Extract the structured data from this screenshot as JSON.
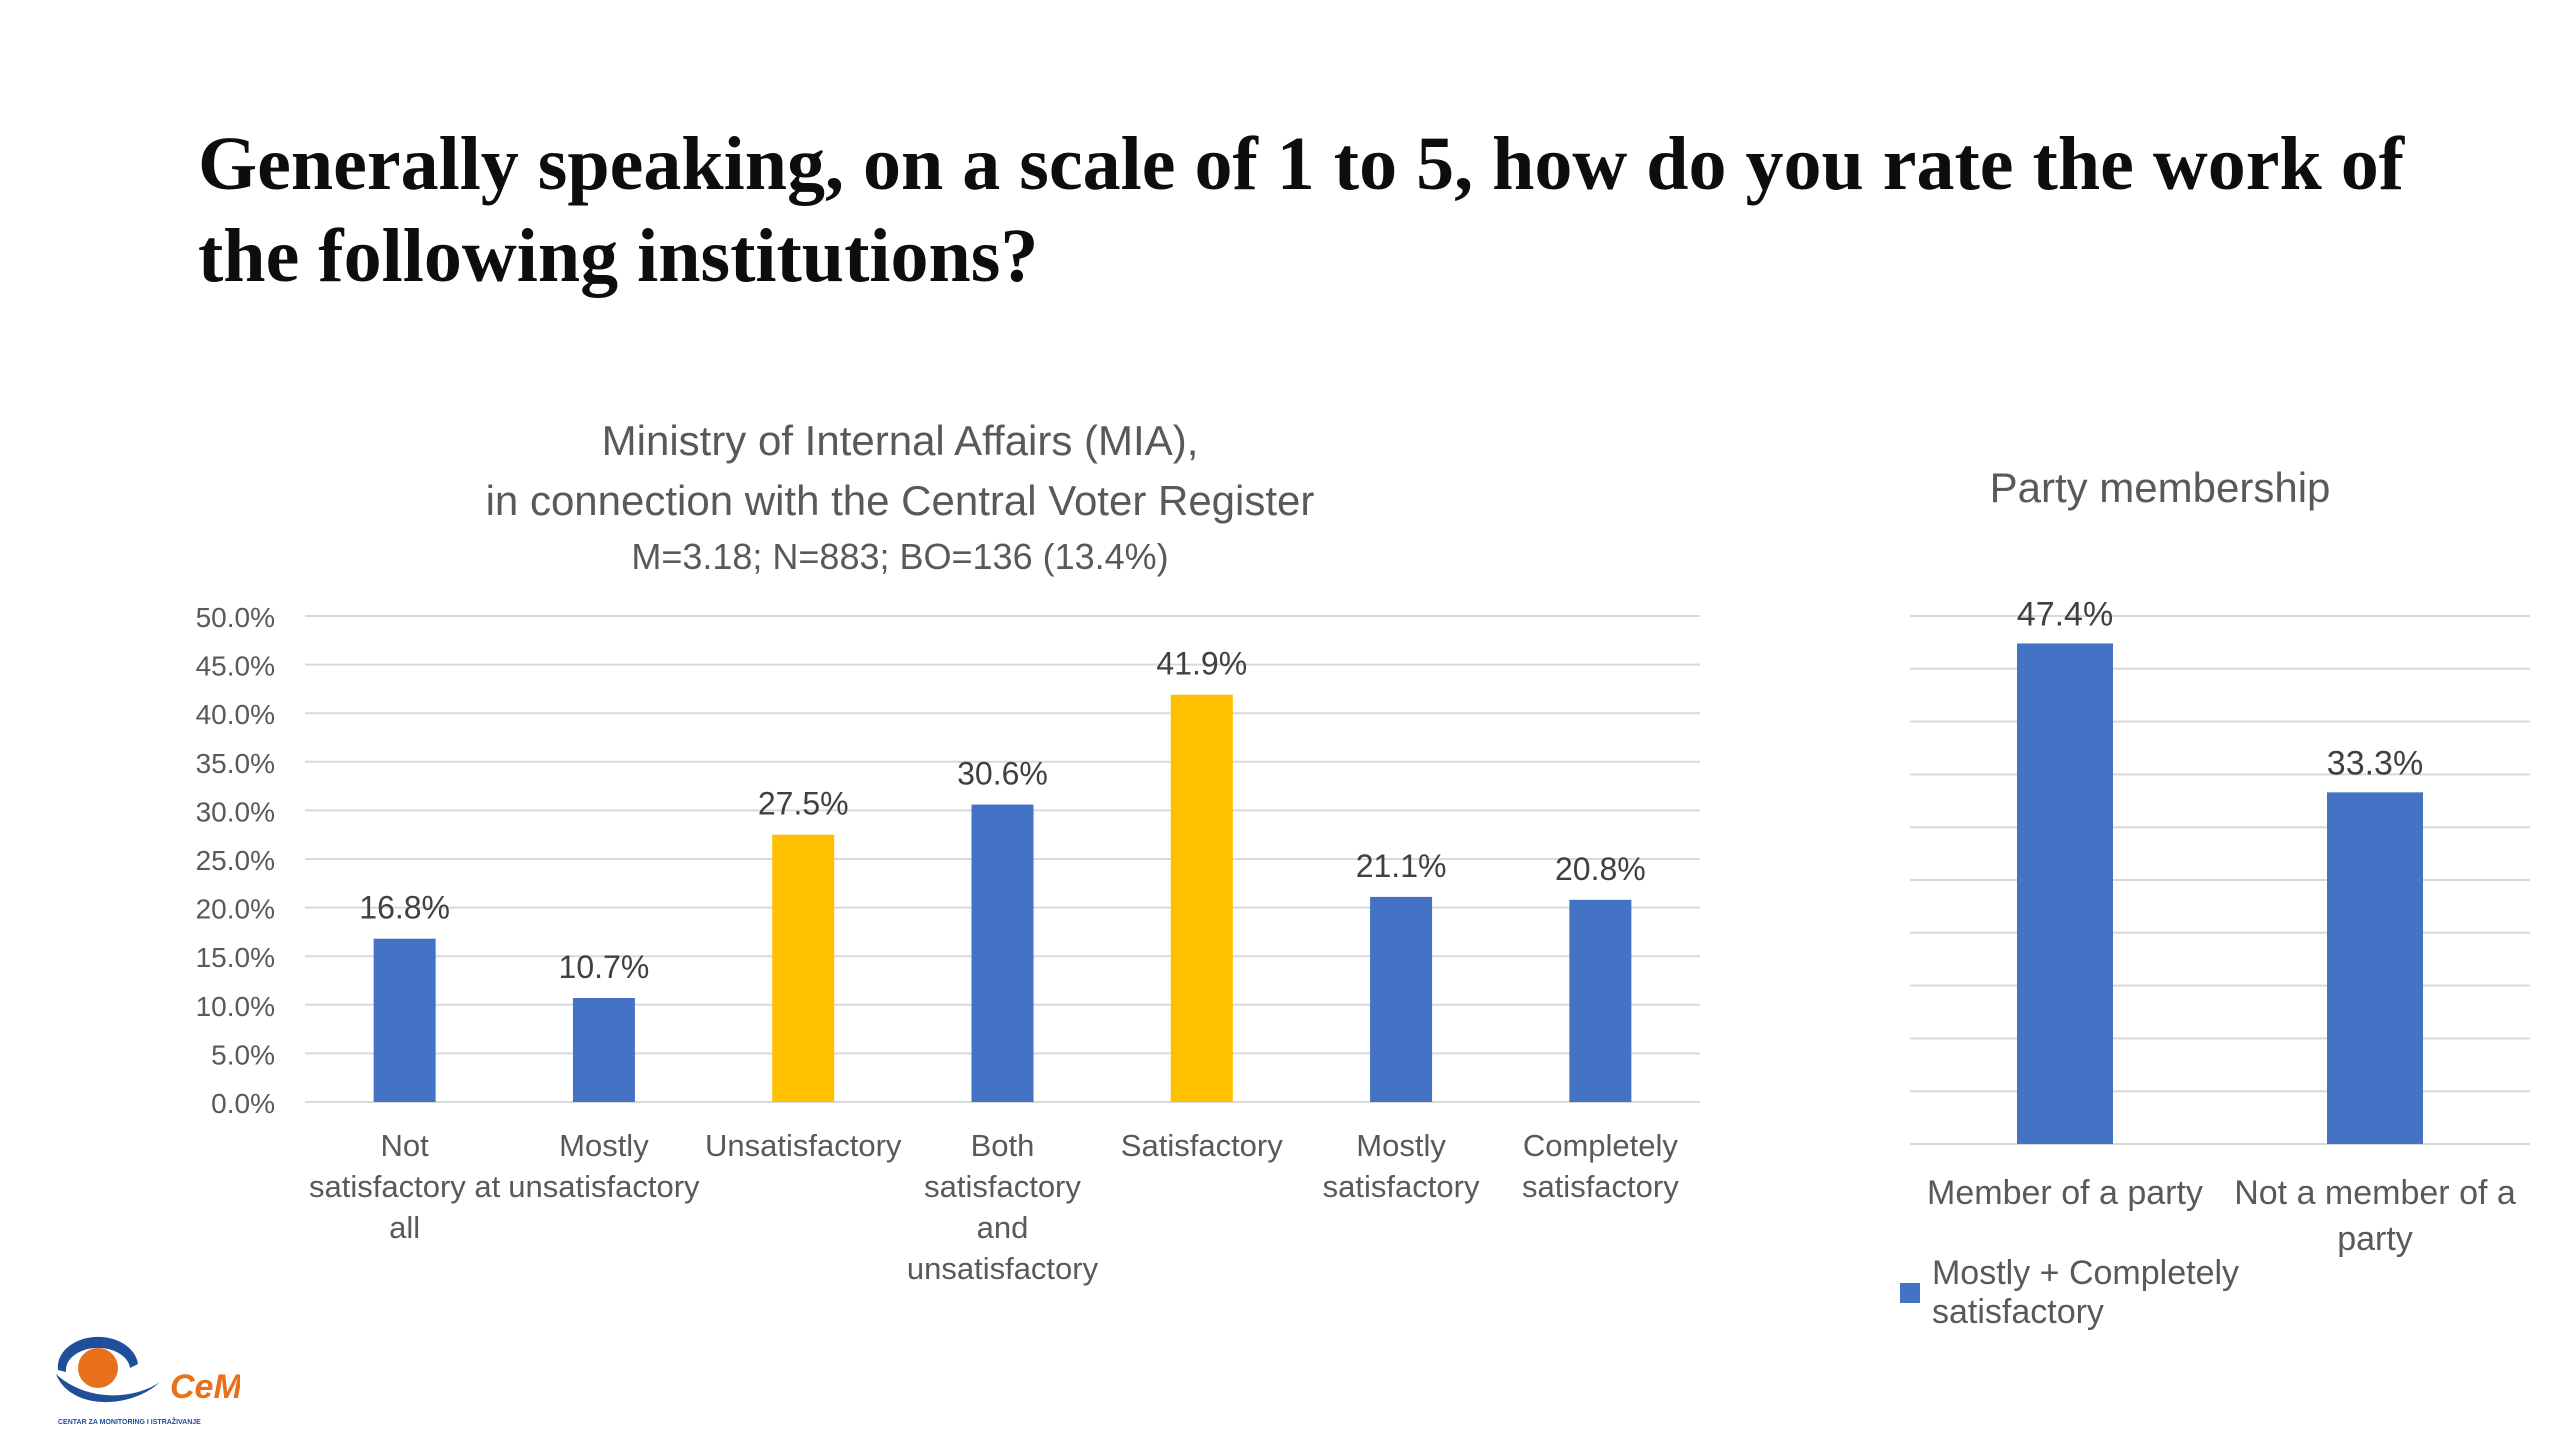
{
  "slide": {
    "title": "Generally speaking, on a scale of  1 to 5, how do you rate the work of  the following institutions?"
  },
  "logo": {
    "text": "CeMI",
    "caption": "CENTAR ZA MONITORING I ISTRAŽIVANJE"
  },
  "colors": {
    "blue": "#4472C4",
    "gold": "#FFC000",
    "grid": "#D9D9D9",
    "axis_text": "#595959",
    "logo_blue": "#1F4E9A",
    "logo_orange": "#E8701A"
  },
  "chart_data": [
    {
      "type": "bar",
      "title": "Ministry of Internal Affairs (MIA),",
      "title_line2": "in connection with the Central Voter Register",
      "subtitle": "M=3.18; N=883; BO=136 (13.4%)",
      "categories": [
        [
          "Not",
          "satisfactory at",
          "all"
        ],
        [
          "Mostly",
          "unsatisfactory"
        ],
        [
          "Unsatisfactory"
        ],
        [
          "Both",
          "satisfactory",
          "and",
          "unsatisfactory"
        ],
        [
          "Satisfactory"
        ],
        [
          "Mostly",
          "satisfactory"
        ],
        [
          "Completely",
          "satisfactory"
        ]
      ],
      "values": [
        16.8,
        10.7,
        27.5,
        30.6,
        41.9,
        21.1,
        20.8
      ],
      "data_labels": [
        "16.8%",
        "10.7%",
        "27.5%",
        "30.6%",
        "41.9%",
        "21.1%",
        "20.8%"
      ],
      "bar_colors": [
        "#4472C4",
        "#4472C4",
        "#FFC000",
        "#4472C4",
        "#FFC000",
        "#4472C4",
        "#4472C4"
      ],
      "ylim": [
        0,
        50
      ],
      "yticks": [
        "0.0%",
        "5.0%",
        "10.0%",
        "15.0%",
        "20.0%",
        "25.0%",
        "30.0%",
        "35.0%",
        "40.0%",
        "45.0%",
        "50.0%"
      ],
      "grid": true
    },
    {
      "type": "bar",
      "title": "Party membership",
      "categories": [
        [
          "Member of a party"
        ],
        [
          "Not a member of a",
          "party"
        ]
      ],
      "series": [
        {
          "name": "Mostly + Completely satisfactory",
          "values": [
            47.4,
            33.3
          ]
        }
      ],
      "data_labels": [
        "47.4%",
        "33.3%"
      ],
      "ylim": [
        0,
        50
      ],
      "grid": true,
      "legend": "bottom"
    }
  ]
}
